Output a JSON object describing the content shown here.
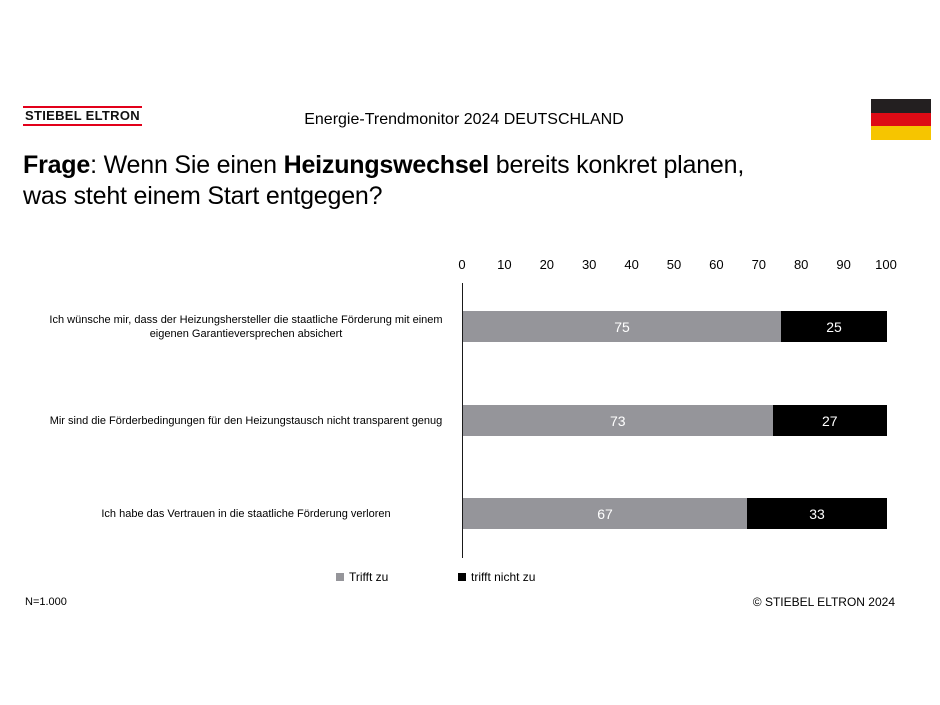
{
  "header": {
    "logo": "STIEBEL ELTRON",
    "logo_accent_color": "#e2001a",
    "report_title": "Energie-Trendmonitor 2024 DEUTSCHLAND",
    "flag": "german-flag",
    "flag_colors": [
      "#231f20",
      "#dd0b15",
      "#f6c500"
    ]
  },
  "question": {
    "lead_bold": "Frage",
    "lead_sep": ": ",
    "line1_regular": "Wenn Sie einen ",
    "line1_bold": "Heizungswechsel",
    "line1_tail": " bereits konkret planen,",
    "line2": "was steht einem Start entgegen?"
  },
  "chart_data": {
    "type": "bar",
    "orientation": "horizontal",
    "stacked": true,
    "xlim": [
      0,
      100
    ],
    "x_ticks": [
      0,
      10,
      20,
      30,
      40,
      50,
      60,
      70,
      80,
      90,
      100
    ],
    "grid": false,
    "legend_position": "bottom",
    "value_label_color": "#ffffff",
    "categories": [
      "Ich wünsche mir, dass der Heizungshersteller die staatliche Förderung mit einem eigenen Garantieversprechen absichert",
      "Mir sind die Förderbedingungen für den Heizungstausch nicht transparent genug",
      "Ich habe das Vertrauen in die staatliche Förderung verloren"
    ],
    "series": [
      {
        "name": "Trifft zu",
        "color": "#95959a",
        "values": [
          75,
          73,
          67
        ]
      },
      {
        "name": "trifft nicht zu",
        "color": "#000000",
        "values": [
          25,
          27,
          33
        ]
      }
    ]
  },
  "footer": {
    "sample": "N=1.000",
    "copyright": "© STIEBEL ELTRON 2024"
  }
}
